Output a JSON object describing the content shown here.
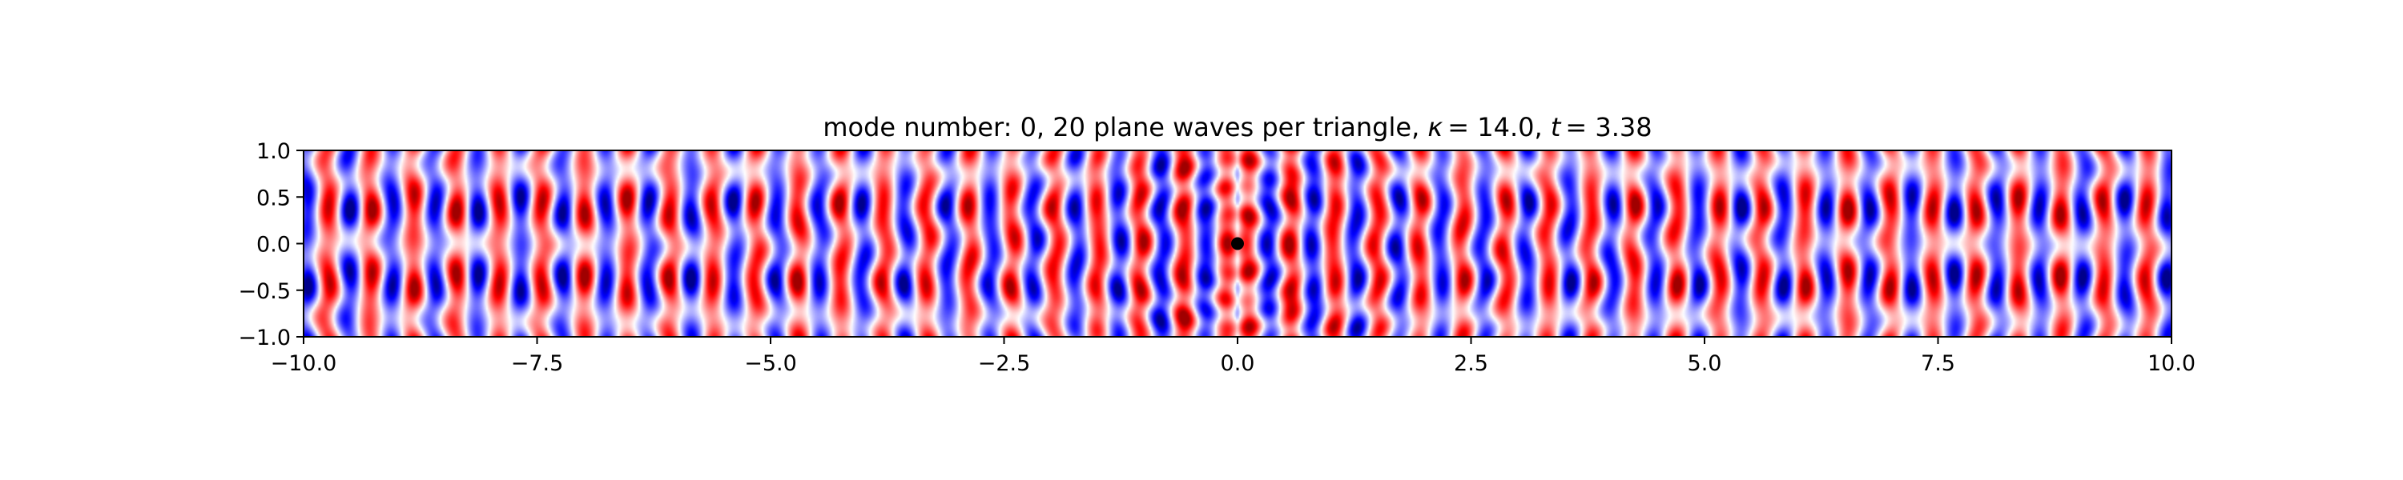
{
  "chart_data": {
    "type": "heatmap",
    "title": {
      "prefix": "mode number: 0, 20 plane waves per triangle, ",
      "kappa_symbol": "κ",
      "kappa_value": "= 14.0",
      "separator": ", ",
      "t_symbol": "t",
      "t_value": "= 3.38"
    },
    "xlabel": "",
    "ylabel": "",
    "xlim": [
      -10.0,
      10.0
    ],
    "ylim": [
      -1.0,
      1.0
    ],
    "x_ticks": [
      {
        "value": -10.0,
        "label": "−10.0"
      },
      {
        "value": -7.5,
        "label": "−7.5"
      },
      {
        "value": -5.0,
        "label": "−5.0"
      },
      {
        "value": -2.5,
        "label": "−2.5"
      },
      {
        "value": 0.0,
        "label": "0.0"
      },
      {
        "value": 2.5,
        "label": "2.5"
      },
      {
        "value": 5.0,
        "label": "5.0"
      },
      {
        "value": 7.5,
        "label": "7.5"
      },
      {
        "value": 10.0,
        "label": "10.0"
      }
    ],
    "y_ticks": [
      {
        "value": 1.0,
        "label": "1.0"
      },
      {
        "value": 0.5,
        "label": "0.5"
      },
      {
        "value": 0.0,
        "label": "0.0"
      },
      {
        "value": -0.5,
        "label": "−0.5"
      },
      {
        "value": -1.0,
        "label": "−1.0"
      }
    ],
    "colormap": {
      "low": "#0000ff",
      "mid": "#ffffff",
      "high": "#ff0000",
      "dark_low": "#00008b",
      "dark_high": "#a00000"
    },
    "field": {
      "kappa": 14.0,
      "time": 3.38
    },
    "source_marker": {
      "x": 0.0,
      "y": 0.0,
      "color": "#000000"
    },
    "grid": false
  }
}
